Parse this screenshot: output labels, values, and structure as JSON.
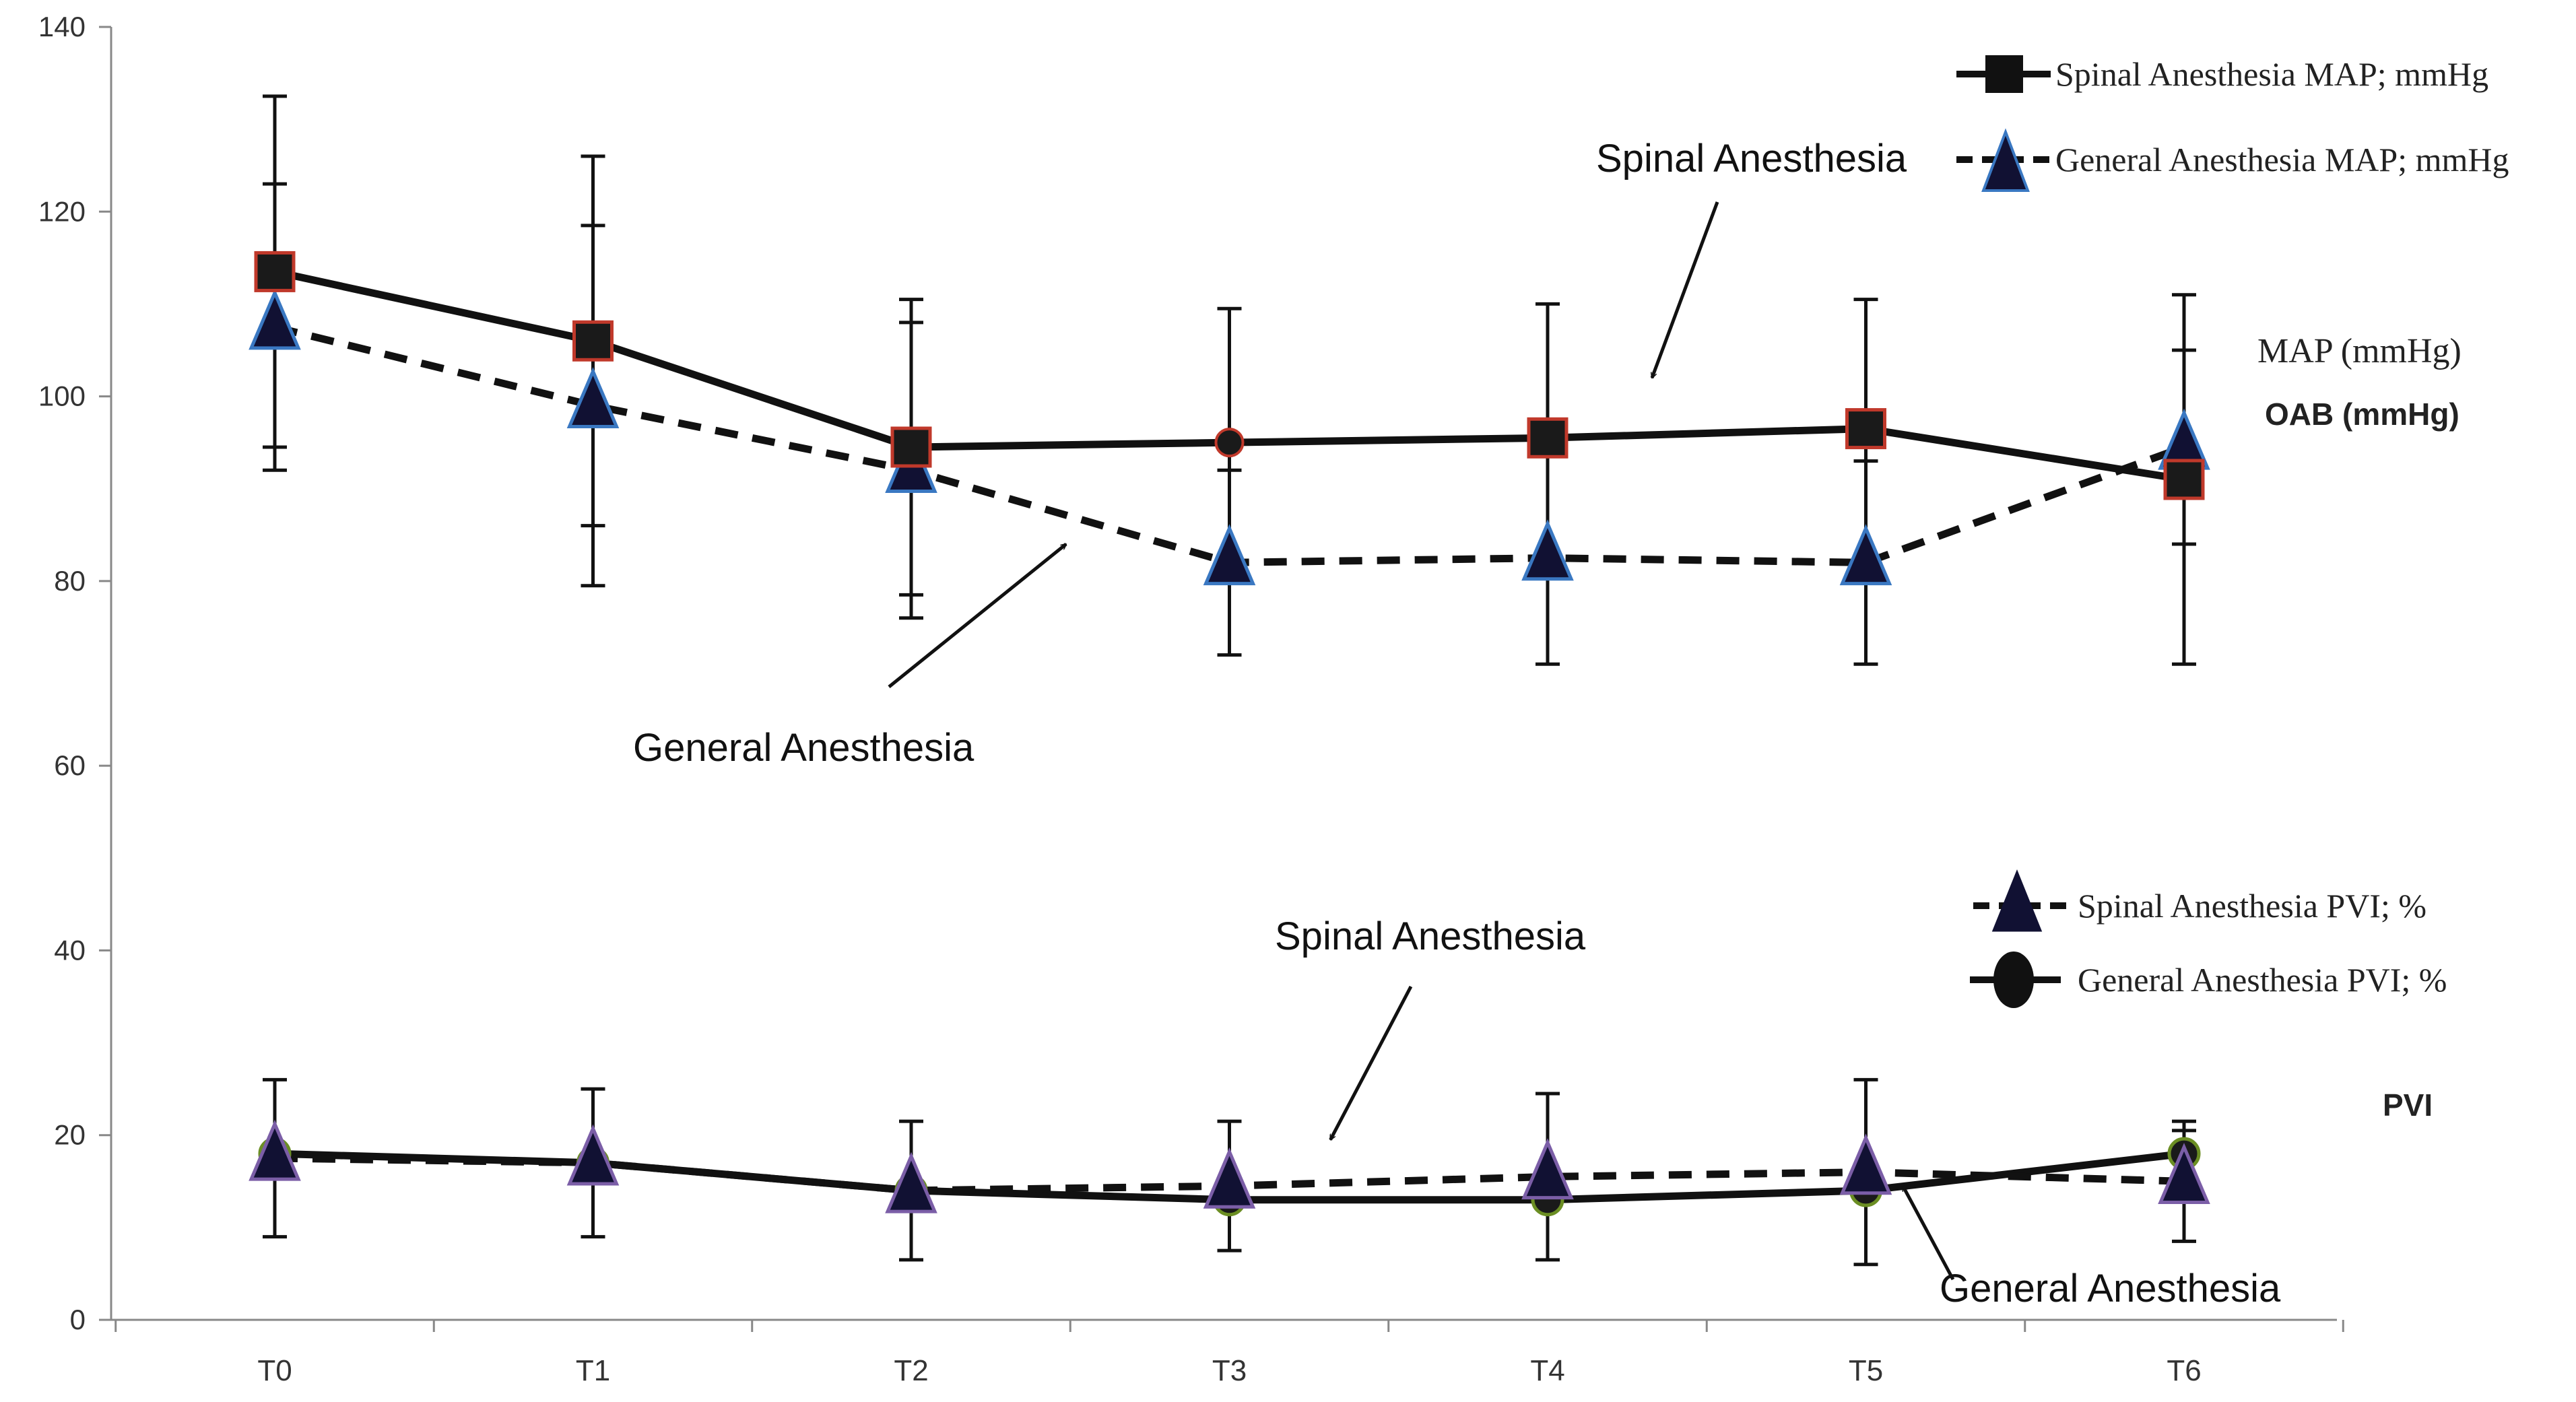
{
  "chart_data": {
    "type": "line",
    "title": "",
    "xlabel": "",
    "ylabel": "",
    "categories": [
      "T0",
      "T1",
      "T2",
      "T3",
      "T4",
      "T5",
      "T6"
    ],
    "ylim": [
      0,
      140
    ],
    "yticks": [
      0,
      20,
      40,
      60,
      80,
      100,
      120,
      140
    ],
    "grid": false,
    "series": [
      {
        "name": "Spinal Anesthesia MAP; mmHg",
        "values": [
          113.5,
          106,
          94.5,
          95,
          95.5,
          96.5,
          91
        ],
        "error": [
          19,
          20,
          16,
          14.5,
          14.5,
          14,
          20
        ],
        "line": "solid",
        "marker": "square",
        "marker_fill": "#1a1a1a",
        "marker_edge": "#c0392b"
      },
      {
        "name": "General Anesthesia MAP; mmHg",
        "values": [
          107.5,
          99,
          92,
          82,
          82.5,
          82,
          94.5
        ],
        "error": [
          15.5,
          19.5,
          16,
          10,
          11.5,
          11,
          10.5
        ],
        "line": "dashed",
        "marker": "triangle",
        "marker_fill": "#111133",
        "marker_edge": "#3a78c2"
      },
      {
        "name": "Spinal Anesthesia PVI; %",
        "values": [
          17.5,
          17,
          14,
          14.5,
          15.5,
          16,
          15
        ],
        "error": [
          8.5,
          8,
          7.5,
          7,
          9,
          10,
          6.5
        ],
        "line": "dashed",
        "marker": "triangle",
        "marker_fill": "#111133",
        "marker_edge": "#7b5ea7"
      },
      {
        "name": "General Anesthesia PVI; %",
        "values": [
          18,
          17,
          14,
          13,
          13,
          14,
          18
        ],
        "error": [
          0,
          0,
          0,
          0,
          0,
          0,
          2.5
        ],
        "line": "solid",
        "marker": "circle",
        "marker_fill": "#1a1a1a",
        "marker_edge": "#6b8e23"
      }
    ],
    "annotations": [
      {
        "text": "Spinal Anesthesia",
        "target": {
          "x": "T4",
          "y": 102
        }
      },
      {
        "text": "General Anesthesia",
        "target": {
          "x": "T2",
          "y": 84
        }
      },
      {
        "text": "Spinal Anesthesia",
        "target": {
          "x": "T3",
          "y": 19.5
        }
      },
      {
        "text": "General Anesthesia",
        "target": {
          "x": "T5",
          "y": 14.5
        }
      }
    ],
    "side_labels": {
      "map_label": "MAP (mmHg)",
      "oab_label": "OAB (mmHg)",
      "pvi_label": "PVI"
    },
    "legend_top": [
      "Spinal Anesthesia MAP; mmHg",
      "General Anesthesia MAP; mmHg"
    ],
    "legend_bottom": [
      "Spinal Anesthesia PVI; %",
      "General Anesthesia PVI; %"
    ]
  }
}
